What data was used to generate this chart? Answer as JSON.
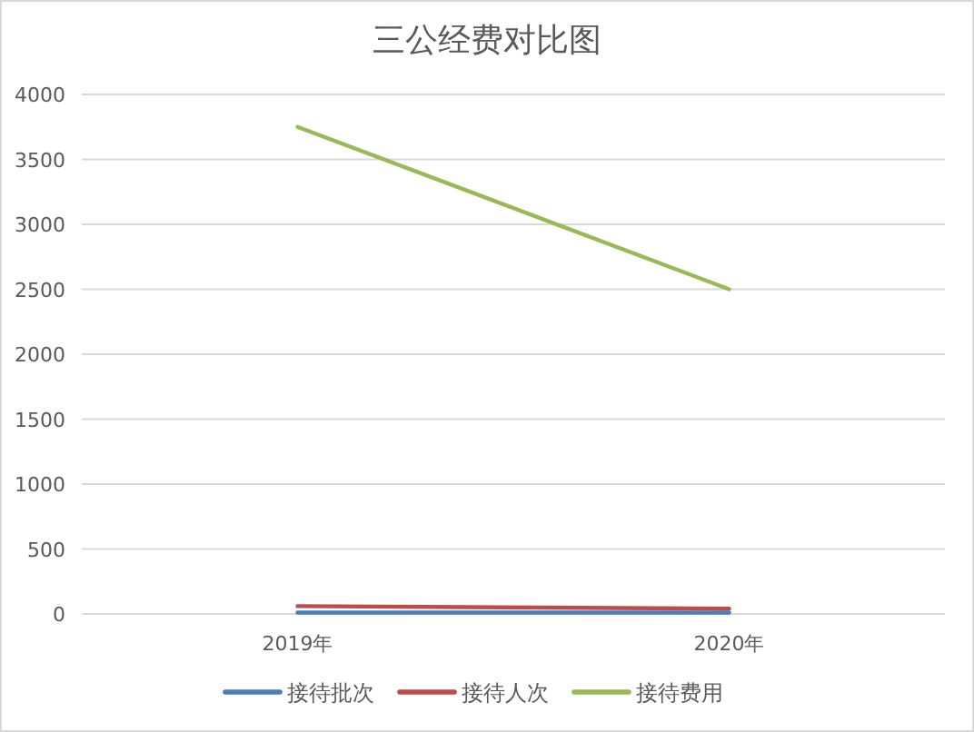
{
  "chart_data": {
    "type": "line",
    "title": "三公经费对比图",
    "categories": [
      "2019年",
      "2020年"
    ],
    "series": [
      {
        "name": "接待批次",
        "color": "#4a7ebb",
        "values": [
          10,
          10
        ]
      },
      {
        "name": "接待人次",
        "color": "#be4b48",
        "values": [
          60,
          40
        ]
      },
      {
        "name": "接待费用",
        "color": "#98b954",
        "values": [
          3750,
          2500
        ]
      }
    ],
    "ylim": [
      0,
      4000
    ],
    "yticks": [
      0,
      500,
      1000,
      1500,
      2000,
      2500,
      3000,
      3500,
      4000
    ],
    "grid": "y",
    "legend": "bottom",
    "marker": "none",
    "line_style": "solid"
  }
}
